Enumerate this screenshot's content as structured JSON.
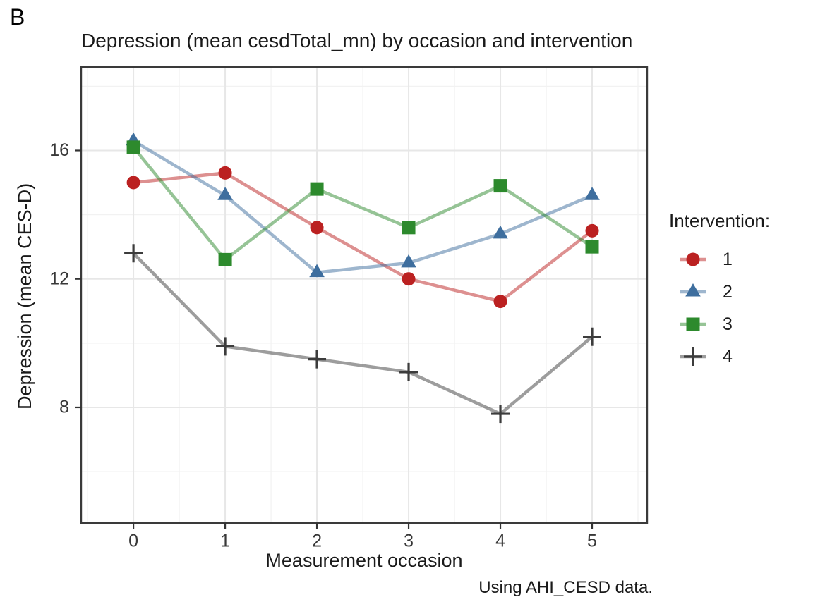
{
  "panel_label": "B",
  "title": "Depression (mean cesdTotal_mn) by occasion and intervention",
  "caption": "Using AHI_CESD data.",
  "axes": {
    "x_label": "Measurement occasion",
    "y_label": "Depression (mean CES-D)",
    "x_ticks": [
      0,
      1,
      2,
      3,
      4,
      5
    ],
    "y_ticks": [
      8,
      12,
      16
    ]
  },
  "legend": {
    "title": "Intervention:",
    "entries": [
      {
        "label": "1",
        "marker": "circle",
        "color": "#BB2121"
      },
      {
        "label": "2",
        "marker": "triangle",
        "color": "#3E6E9E"
      },
      {
        "label": "3",
        "marker": "square",
        "color": "#2D8A2D"
      },
      {
        "label": "4",
        "marker": "plus",
        "color": "#3C3C3C"
      }
    ]
  },
  "colors": {
    "panel_border": "#3a3a3a",
    "grid_major": "#e7e7e7",
    "grid_minor": "#f2f2f2",
    "tick": "#333333",
    "background": "#ffffff"
  },
  "chart_data": {
    "type": "line",
    "title": "Depression (mean cesdTotal_mn) by occasion and intervention",
    "xlabel": "Measurement occasion",
    "ylabel": "Depression (mean CES-D)",
    "x": [
      0,
      1,
      2,
      3,
      4,
      5
    ],
    "series": [
      {
        "name": "1",
        "marker": "circle",
        "color": "#BB2121",
        "values": [
          15.0,
          15.3,
          13.6,
          12.0,
          11.3,
          13.5
        ]
      },
      {
        "name": "2",
        "marker": "triangle",
        "color": "#3E6E9E",
        "values": [
          16.3,
          14.6,
          12.2,
          12.5,
          13.4,
          14.6
        ]
      },
      {
        "name": "3",
        "marker": "square",
        "color": "#2D8A2D",
        "values": [
          16.1,
          12.6,
          14.8,
          13.6,
          14.9,
          13.0
        ]
      },
      {
        "name": "4",
        "marker": "plus",
        "color": "#3C3C3C",
        "values": [
          12.8,
          9.9,
          9.5,
          9.1,
          7.8,
          10.2
        ]
      }
    ],
    "xlim": [
      -0.57,
      5.6
    ],
    "ylim": [
      4.4,
      18.6
    ],
    "x_major": [
      0,
      1,
      2,
      3,
      4,
      5
    ],
    "x_minor": [
      -0.5,
      0.5,
      1.5,
      2.5,
      3.5,
      4.5,
      5.5
    ],
    "y_major": [
      8,
      12,
      16
    ],
    "y_minor": [
      6,
      10,
      14,
      18
    ],
    "grid": true,
    "legend_position": "right",
    "line_opacity": 0.5
  }
}
